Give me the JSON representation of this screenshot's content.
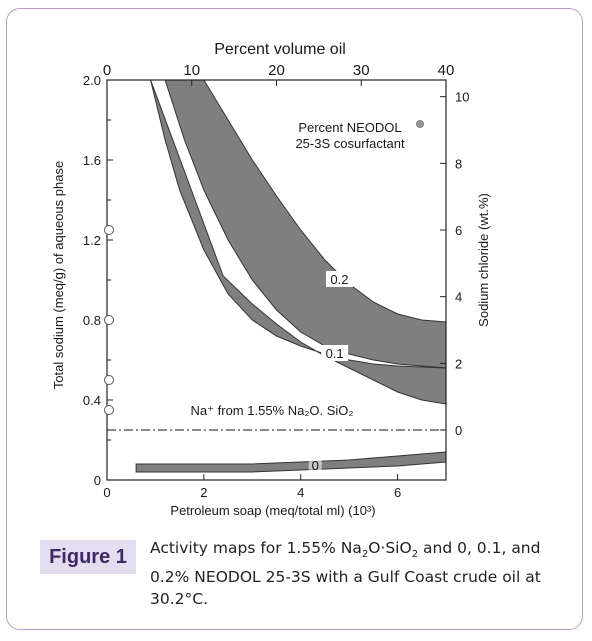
{
  "chart_data": {
    "type": "area",
    "top_axis": {
      "label": "Percent volume oil",
      "ticks": [
        "0",
        "10",
        "20",
        "30",
        "40"
      ],
      "range": [
        0,
        40
      ]
    },
    "bottom_axis": {
      "label": "Petroleum soap (meq/total ml) (10³)",
      "ticks": [
        "0",
        "2",
        "4",
        "6"
      ],
      "range": [
        0,
        7
      ]
    },
    "left_axis": {
      "label": "Total sodium (meq/g) of aqueous phase",
      "ticks": [
        "0",
        "0.4",
        "0.8",
        "1.2",
        "1.6",
        "2.0"
      ],
      "range": [
        0,
        2.0
      ]
    },
    "right_axis": {
      "label": "Sodium chloride (wt.%)",
      "ticks": [
        "0",
        "2",
        "4",
        "6",
        "8",
        "10"
      ],
      "range": [
        -1.5,
        10.5
      ]
    },
    "legend_text": [
      "Percent NEODOL",
      "25-3S cosurfactant"
    ],
    "reference_line": {
      "text": "Na⁺ from  1.55% Na₂O. SiO₂",
      "y": 0.25
    },
    "series": [
      {
        "name": "0.2",
        "upper": [
          [
            2.0,
            2.0
          ],
          [
            2.5,
            1.8
          ],
          [
            3.0,
            1.6
          ],
          [
            3.5,
            1.42
          ],
          [
            4.0,
            1.25
          ],
          [
            4.5,
            1.1
          ],
          [
            5.0,
            0.98
          ],
          [
            5.5,
            0.89
          ],
          [
            6.0,
            0.83
          ],
          [
            6.5,
            0.8
          ],
          [
            7.0,
            0.79
          ]
        ],
        "lower": [
          [
            1.2,
            2.0
          ],
          [
            1.6,
            1.7
          ],
          [
            2.0,
            1.45
          ],
          [
            2.5,
            1.2
          ],
          [
            3.0,
            1.0
          ],
          [
            3.5,
            0.85
          ],
          [
            4.0,
            0.74
          ],
          [
            4.5,
            0.67
          ],
          [
            5.0,
            0.63
          ],
          [
            5.5,
            0.6
          ],
          [
            6.0,
            0.58
          ],
          [
            7.0,
            0.56
          ]
        ]
      },
      {
        "name": "0.1",
        "upper": [
          [
            0.9,
            2.0
          ],
          [
            1.2,
            1.7
          ],
          [
            1.5,
            1.45
          ],
          [
            2.0,
            1.15
          ],
          [
            2.5,
            0.93
          ],
          [
            3.0,
            0.8
          ],
          [
            3.5,
            0.72
          ],
          [
            4.0,
            0.67
          ],
          [
            4.5,
            0.63
          ],
          [
            5.0,
            0.6
          ],
          [
            5.5,
            0.58
          ],
          [
            6.0,
            0.57
          ],
          [
            7.0,
            0.56
          ]
        ],
        "lower": [
          [
            2.4,
            1.02
          ],
          [
            3.0,
            0.88
          ],
          [
            3.5,
            0.78
          ],
          [
            4.0,
            0.69
          ],
          [
            4.5,
            0.62
          ],
          [
            5.0,
            0.56
          ],
          [
            5.5,
            0.5
          ],
          [
            6.0,
            0.44
          ],
          [
            6.5,
            0.4
          ],
          [
            7.0,
            0.38
          ]
        ]
      },
      {
        "name": "0",
        "upper": [
          [
            0.6,
            0.08
          ],
          [
            2.0,
            0.08
          ],
          [
            3.0,
            0.08
          ],
          [
            4.0,
            0.09
          ],
          [
            5.0,
            0.1
          ],
          [
            6.0,
            0.12
          ],
          [
            7.0,
            0.14
          ]
        ],
        "lower": [
          [
            0.6,
            0.04
          ],
          [
            2.0,
            0.04
          ],
          [
            3.0,
            0.04
          ],
          [
            4.0,
            0.05
          ],
          [
            5.0,
            0.06
          ],
          [
            6.0,
            0.07
          ],
          [
            7.0,
            0.09
          ]
        ]
      }
    ],
    "colors": {
      "band": "#7f7f7f",
      "band_edge": "#333333",
      "reference_line": "#444444"
    }
  },
  "figure": {
    "label": "Figure 1",
    "caption_line1_pre": "Activity maps for 1.55% Na",
    "caption_sub1": "2",
    "caption_mid": "O·SiO",
    "caption_sub2": "2",
    "caption_line1_post": " and 0, 0.1, and",
    "caption_line2": "0.2% NEODOL 25-3S with a Gulf Coast crude oil at",
    "caption_line3": "30.2°C."
  }
}
